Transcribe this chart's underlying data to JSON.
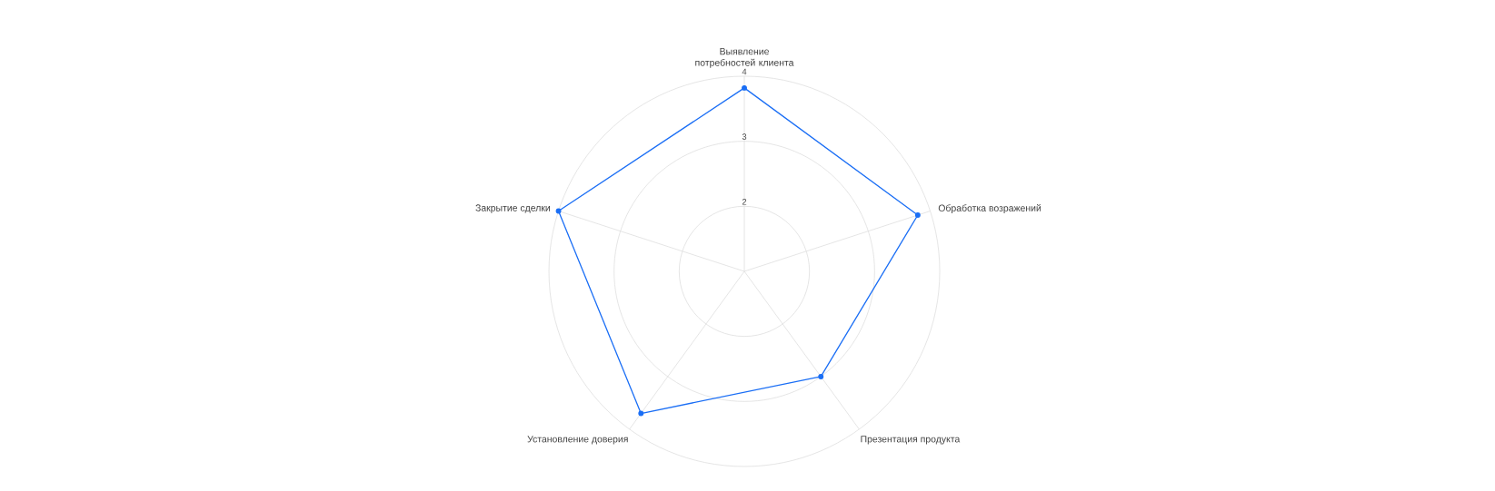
{
  "chart_data": {
    "type": "radar",
    "categories": [
      "Выявление потребностей клиента",
      "Обработка возражений",
      "Презентация продукта",
      "Установление доверия",
      "Закрытие сделки"
    ],
    "series": [
      {
        "color": "#1a6ef5",
        "values": [
          3.82,
          3.8,
          3.0,
          3.7,
          4.0
        ]
      }
    ],
    "ylim": [
      1,
      4
    ],
    "yticks": [
      2,
      3,
      4
    ],
    "grid": true,
    "marker": "circle",
    "line_style": "solid"
  }
}
